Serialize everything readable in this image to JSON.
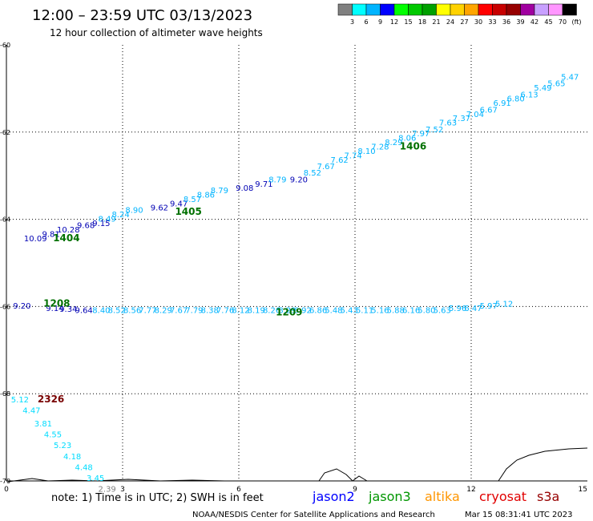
{
  "header": {
    "title": "12:00 – 23:59 UTC 03/13/2023",
    "subtitle": "12 hour collection of altimeter wave heights"
  },
  "colorbar": {
    "colors": [
      "#808080",
      "#00ffff",
      "#00b4ff",
      "#0000ff",
      "#00ff00",
      "#00c800",
      "#00a000",
      "#ffff00",
      "#ffd200",
      "#ffa500",
      "#ff0000",
      "#c80000",
      "#960000",
      "#a000a0",
      "#c8a0ff",
      "#ff96ff",
      "#000000"
    ],
    "labels": [
      "3",
      "6",
      "9",
      "12",
      "15",
      "18",
      "21",
      "24",
      "27",
      "30",
      "33",
      "36",
      "39",
      "42",
      "45",
      "70"
    ],
    "unit": "(ft)"
  },
  "axes": {
    "x_ticks": [
      {
        "v": 0,
        "t": "0"
      },
      {
        "v": 3,
        "t": "3"
      },
      {
        "v": 6,
        "t": "6"
      },
      {
        "v": 9,
        "t": "9"
      },
      {
        "v": 12,
        "t": "12"
      },
      {
        "v": 15,
        "t": "15"
      }
    ],
    "y_ticks": [
      {
        "v": -60,
        "t": "-60"
      },
      {
        "v": -62,
        "t": "-62"
      },
      {
        "v": -64,
        "t": "-64"
      },
      {
        "v": -66,
        "t": "-66"
      },
      {
        "v": -68,
        "t": "-68"
      },
      {
        "v": -70,
        "t": "-70"
      }
    ]
  },
  "tracks": [
    {
      "pass": "1406",
      "pass_pos": [
        10.5,
        -62.4
      ],
      "pass_color": "#007000",
      "points": [
        {
          "x": 7.55,
          "y": -63.15,
          "t": "9.20",
          "c": "#0000b4"
        },
        {
          "x": 7.9,
          "y": -63.0,
          "t": "8.52",
          "c": "#00b4ff"
        },
        {
          "x": 8.25,
          "y": -62.85,
          "t": "7.67",
          "c": "#00b4ff"
        },
        {
          "x": 8.6,
          "y": -62.7,
          "t": "7.62",
          "c": "#00b4ff"
        },
        {
          "x": 8.95,
          "y": -62.6,
          "t": "7.74",
          "c": "#00b4ff"
        },
        {
          "x": 9.3,
          "y": -62.5,
          "t": "8.10",
          "c": "#00b4ff"
        },
        {
          "x": 9.65,
          "y": -62.4,
          "t": "7.28",
          "c": "#00b4ff"
        },
        {
          "x": 10.0,
          "y": -62.3,
          "t": "8.29",
          "c": "#00b4ff"
        },
        {
          "x": 10.35,
          "y": -62.2,
          "t": "8.06",
          "c": "#00b4ff"
        },
        {
          "x": 10.7,
          "y": -62.1,
          "t": "7.97",
          "c": "#00b4ff"
        },
        {
          "x": 11.05,
          "y": -62.0,
          "t": "7.52",
          "c": "#00b4ff"
        },
        {
          "x": 11.4,
          "y": -61.85,
          "t": "7.63",
          "c": "#00b4ff"
        },
        {
          "x": 11.75,
          "y": -61.75,
          "t": "7.37",
          "c": "#00b4ff"
        },
        {
          "x": 12.1,
          "y": -61.65,
          "t": "7.04",
          "c": "#00b4ff"
        },
        {
          "x": 12.45,
          "y": -61.55,
          "t": "6.67",
          "c": "#00b4ff"
        },
        {
          "x": 12.8,
          "y": -61.4,
          "t": "6.91",
          "c": "#00b4ff"
        },
        {
          "x": 13.15,
          "y": -61.3,
          "t": "6.80",
          "c": "#00b4ff"
        },
        {
          "x": 13.5,
          "y": -61.2,
          "t": "6.13",
          "c": "#00b4ff"
        },
        {
          "x": 13.85,
          "y": -61.05,
          "t": "5.49",
          "c": "#00b4ff"
        },
        {
          "x": 14.2,
          "y": -60.95,
          "t": "5.65",
          "c": "#00b4ff"
        },
        {
          "x": 14.55,
          "y": -60.8,
          "t": "5.47",
          "c": "#00b4ff"
        }
      ]
    },
    {
      "pass": "1405",
      "pass_pos": [
        4.7,
        -63.9
      ],
      "pass_color": "#007000",
      "points": [
        {
          "x": 2.6,
          "y": -64.05,
          "t": "8.49",
          "c": "#00b4ff"
        },
        {
          "x": 2.95,
          "y": -63.95,
          "t": "8.24",
          "c": "#00b4ff"
        },
        {
          "x": 3.3,
          "y": -63.85,
          "t": "8.90",
          "c": "#00b4ff"
        },
        {
          "x": 3.95,
          "y": -63.8,
          "t": "9.62",
          "c": "#0000b4"
        },
        {
          "x": 4.45,
          "y": -63.7,
          "t": "9.47",
          "c": "#0000b4"
        },
        {
          "x": 4.8,
          "y": -63.6,
          "t": "8.57",
          "c": "#00b4ff"
        },
        {
          "x": 5.15,
          "y": -63.5,
          "t": "8.86",
          "c": "#00b4ff"
        },
        {
          "x": 5.5,
          "y": -63.4,
          "t": "8.79",
          "c": "#00b4ff"
        },
        {
          "x": 6.15,
          "y": -63.35,
          "t": "9.08",
          "c": "#0000b4"
        },
        {
          "x": 6.65,
          "y": -63.25,
          "t": "9.71",
          "c": "#0000b4"
        },
        {
          "x": 7.0,
          "y": -63.15,
          "t": "8.79",
          "c": "#00b4ff"
        }
      ]
    },
    {
      "pass": "1404",
      "pass_pos": [
        1.55,
        -64.5
      ],
      "pass_color": "#007000",
      "points": [
        {
          "x": 0.75,
          "y": -64.5,
          "t": "10.09",
          "c": "#0000b4"
        },
        {
          "x": 1.15,
          "y": -64.4,
          "t": "9.81",
          "c": "#0000b4"
        },
        {
          "x": 1.6,
          "y": -64.3,
          "t": "10.28",
          "c": "#0000b4"
        },
        {
          "x": 2.05,
          "y": -64.2,
          "t": "9.68",
          "c": "#0000b4"
        },
        {
          "x": 2.45,
          "y": -64.15,
          "t": "9.15",
          "c": "#0000b4"
        }
      ]
    },
    {
      "pass": "1208",
      "pass_pos": [
        1.3,
        -66.0
      ],
      "pass_color": "#007000",
      "points": [
        {
          "x": 0.4,
          "y": -66.05,
          "t": "9.20",
          "c": "#0000b4"
        },
        {
          "x": 1.25,
          "y": -66.1,
          "t": "9.14",
          "c": "#0000b4"
        },
        {
          "x": 1.6,
          "y": -66.12,
          "t": "9.34",
          "c": "#0000b4"
        },
        {
          "x": 2.0,
          "y": -66.15,
          "t": "9.64",
          "c": "#0000b4"
        },
        {
          "x": 2.45,
          "y": -66.15,
          "t": "8.40",
          "c": "#00b4ff"
        },
        {
          "x": 2.85,
          "y": -66.15,
          "t": "8.52",
          "c": "#00b4ff"
        },
        {
          "x": 3.25,
          "y": -66.15,
          "t": "8.56",
          "c": "#00b4ff"
        },
        {
          "x": 3.65,
          "y": -66.15,
          "t": "7.77",
          "c": "#00b4ff"
        },
        {
          "x": 4.05,
          "y": -66.15,
          "t": "8.29",
          "c": "#00b4ff"
        },
        {
          "x": 4.45,
          "y": -66.15,
          "t": "7.67",
          "c": "#00b4ff"
        },
        {
          "x": 4.85,
          "y": -66.15,
          "t": "7.79",
          "c": "#00b4ff"
        },
        {
          "x": 5.25,
          "y": -66.15,
          "t": "8.38",
          "c": "#00b4ff"
        },
        {
          "x": 5.65,
          "y": -66.15,
          "t": "7.76",
          "c": "#00b4ff"
        },
        {
          "x": 6.05,
          "y": -66.15,
          "t": "8.12",
          "c": "#00b4ff"
        },
        {
          "x": 6.45,
          "y": -66.15,
          "t": "8.19",
          "c": "#00b4ff"
        },
        {
          "x": 6.85,
          "y": -66.15,
          "t": "8.26",
          "c": "#00b4ff"
        },
        {
          "x": 7.25,
          "y": -66.15,
          "t": "8.29",
          "c": "#00b4ff"
        },
        {
          "x": 7.65,
          "y": -66.15,
          "t": "6.92",
          "c": "#00b4ff"
        },
        {
          "x": 8.05,
          "y": -66.15,
          "t": "6.86",
          "c": "#00b4ff"
        },
        {
          "x": 8.45,
          "y": -66.15,
          "t": "5.48",
          "c": "#00b4ff"
        },
        {
          "x": 8.85,
          "y": -66.15,
          "t": "5.43",
          "c": "#00b4ff"
        },
        {
          "x": 9.25,
          "y": -66.15,
          "t": "5.11",
          "c": "#00b4ff"
        },
        {
          "x": 9.65,
          "y": -66.15,
          "t": "5.16",
          "c": "#00b4ff"
        },
        {
          "x": 10.05,
          "y": -66.15,
          "t": "5.88",
          "c": "#00b4ff"
        },
        {
          "x": 10.45,
          "y": -66.15,
          "t": "6.16",
          "c": "#00b4ff"
        },
        {
          "x": 10.85,
          "y": -66.15,
          "t": "5.80",
          "c": "#00b4ff"
        },
        {
          "x": 11.25,
          "y": -66.15,
          "t": "5.63",
          "c": "#00b4ff"
        },
        {
          "x": 11.65,
          "y": -66.1,
          "t": "5.96",
          "c": "#00b4ff"
        },
        {
          "x": 12.05,
          "y": -66.1,
          "t": "6.47",
          "c": "#00b4ff"
        },
        {
          "x": 12.45,
          "y": -66.05,
          "t": "5.97",
          "c": "#00b4ff"
        },
        {
          "x": 12.85,
          "y": -66.0,
          "t": "5.12",
          "c": "#00b4ff"
        }
      ]
    },
    {
      "pass": "1209",
      "pass_pos": [
        7.3,
        -66.2
      ],
      "pass_color": "#007000",
      "points": []
    },
    {
      "pass": "2326",
      "pass_pos": [
        1.15,
        -68.2
      ],
      "pass_color": "#780000",
      "points": [
        {
          "x": 0.35,
          "y": -68.2,
          "t": "5.12",
          "c": "#00dcff"
        },
        {
          "x": 0.65,
          "y": -68.45,
          "t": "4.47",
          "c": "#00dcff"
        },
        {
          "x": 0.95,
          "y": -68.75,
          "t": "3.81",
          "c": "#00dcff"
        },
        {
          "x": 1.2,
          "y": -69.0,
          "t": "4.55",
          "c": "#00dcff"
        },
        {
          "x": 1.45,
          "y": -69.25,
          "t": "5.23",
          "c": "#00dcff"
        },
        {
          "x": 1.7,
          "y": -69.5,
          "t": "4.18",
          "c": "#00dcff"
        },
        {
          "x": 2.0,
          "y": -69.75,
          "t": "4.48",
          "c": "#00dcff"
        },
        {
          "x": 2.3,
          "y": -70.0,
          "t": "3.45",
          "c": "#00dcff"
        },
        {
          "x": 2.6,
          "y": -70.25,
          "t": "2.39",
          "c": "#808080"
        }
      ]
    }
  ],
  "footer": {
    "note": "note: 1) Time is in UTC; 2) SWH is in feet",
    "legend": [
      {
        "t": "jason2",
        "c": "#0000ff"
      },
      {
        "t": "jason3",
        "c": "#009600"
      },
      {
        "t": "altika",
        "c": "#ff9600"
      },
      {
        "t": "cryosat",
        "c": "#e10000"
      },
      {
        "t": "s3a",
        "c": "#960000"
      }
    ],
    "credit": "NOAA/NESDIS Center for Satellite Applications and Research",
    "timestamp": "Mar 15 08:31:41 UTC 2023"
  }
}
